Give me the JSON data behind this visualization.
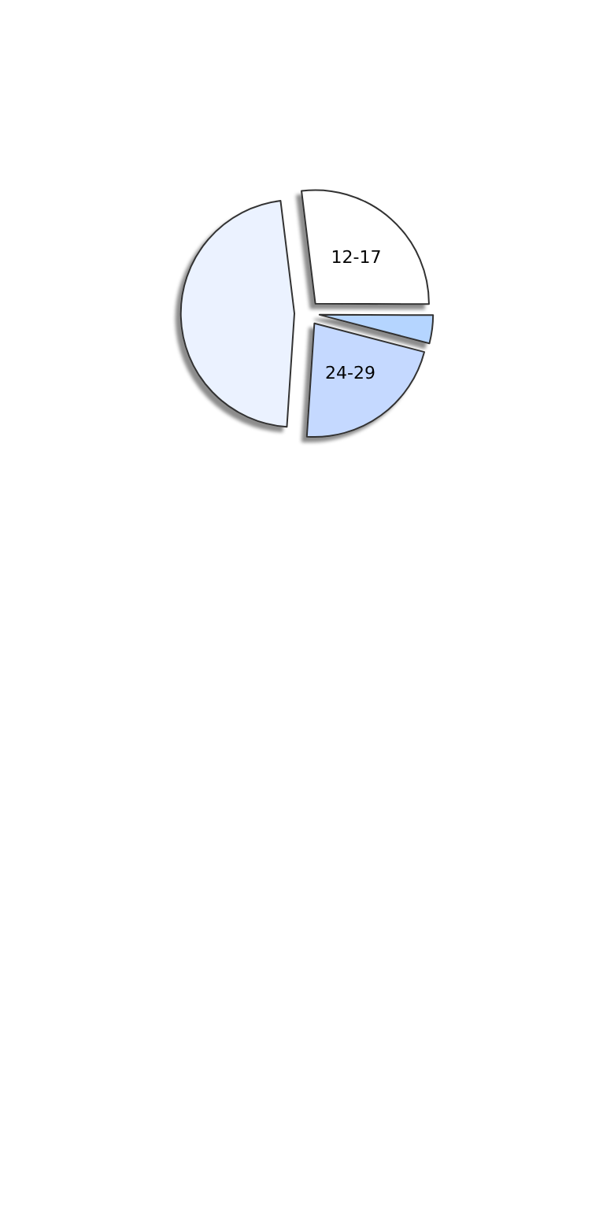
{
  "chart_data": {
    "type": "pie",
    "categories": [
      "12-17",
      null,
      "24-29",
      null
    ],
    "values": [
      27,
      4,
      22,
      47
    ],
    "colors": [
      "#ffffff",
      "#b5d5ff",
      "#c5d9ff",
      "#ebf2ff"
    ],
    "legend": false
  }
}
